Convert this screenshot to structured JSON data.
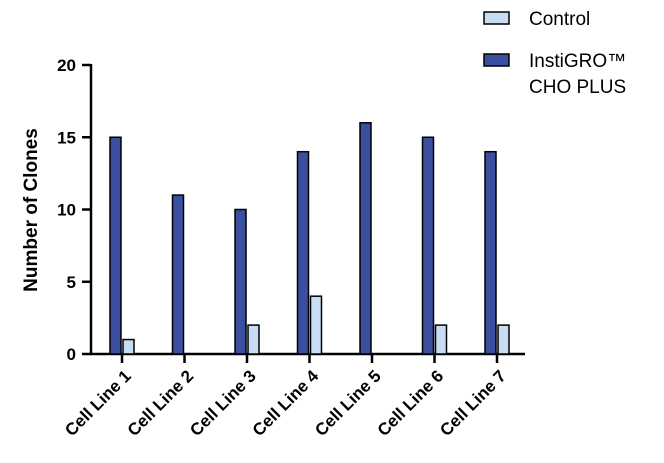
{
  "chart_data": {
    "type": "bar",
    "categories": [
      "Cell Line 1",
      "Cell Line 2",
      "Cell Line 3",
      "Cell Line 4",
      "Cell Line 5",
      "Cell Line 6",
      "Cell Line 7"
    ],
    "series": [
      {
        "name": "InstiGRO™ CHO PLUS",
        "values": [
          15,
          11,
          10,
          14,
          16,
          15,
          14
        ],
        "color": "#3b4fa1"
      },
      {
        "name": "Control",
        "values": [
          1,
          0,
          2,
          4,
          0,
          2,
          2
        ],
        "color": "#c6ddf3"
      }
    ],
    "title": "",
    "xlabel": "",
    "ylabel": "Number of Clones",
    "ylim": [
      0,
      20
    ],
    "yticks": [
      0,
      5,
      10,
      15,
      20
    ],
    "grid": false,
    "legend_position": "top-right",
    "legend": [
      {
        "line1": "Control",
        "line2": "",
        "color": "#c6ddf3"
      },
      {
        "line1": "InstiGRO™",
        "line2": "CHO PLUS",
        "color": "#3b4fa1"
      }
    ]
  }
}
